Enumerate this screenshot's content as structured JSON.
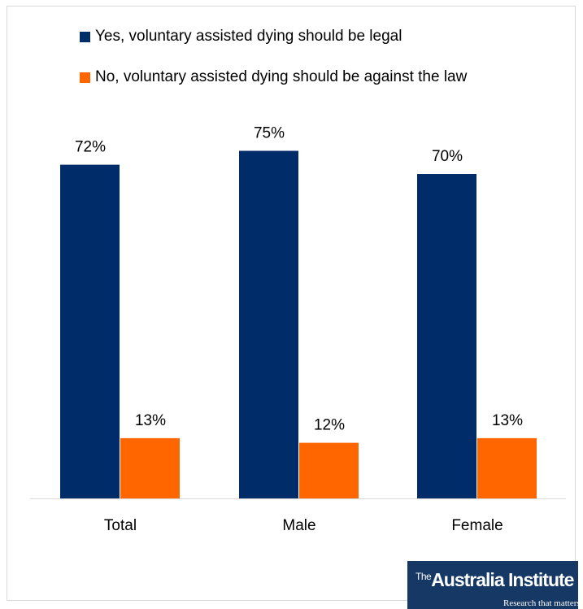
{
  "chart_data": {
    "type": "bar",
    "categories": [
      "Total",
      "Male",
      "Female"
    ],
    "series": [
      {
        "name": "Yes, voluntary assisted dying should be legal",
        "color": "#002d6a",
        "values": [
          72,
          75,
          70
        ],
        "labels": [
          "72%",
          "75%",
          "70%"
        ]
      },
      {
        "name": "No, voluntary assisted dying should be against the law",
        "color": "#ff6600",
        "values": [
          13,
          12,
          13
        ],
        "labels": [
          "13%",
          "12%",
          "13%"
        ]
      }
    ],
    "ylim": [
      0,
      100
    ],
    "grid": false,
    "legend": "top-left"
  },
  "logo": {
    "prefix": "The",
    "name": "Australia Institute",
    "tagline": "Research that matters"
  }
}
